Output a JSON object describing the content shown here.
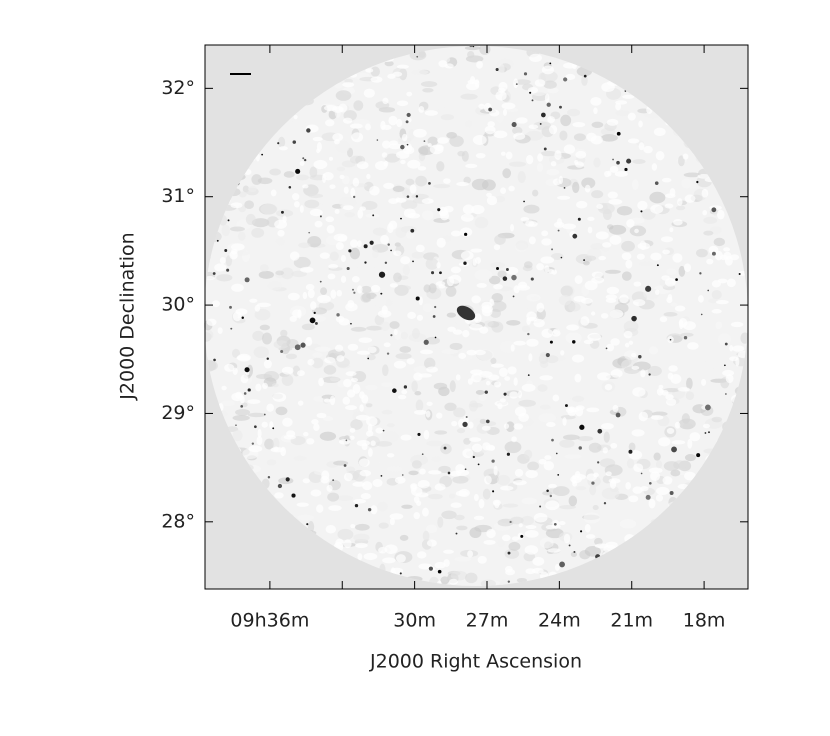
{
  "chart_data": {
    "type": "image",
    "x_label": "J2000 Right Ascension",
    "y_label": "J2000 Declination",
    "xlim": [
      38.69,
      16.18
    ],
    "ylim": [
      27.38,
      32.4
    ],
    "xticks": [
      {
        "value": 36,
        "label": "09h36m"
      },
      {
        "value": 30,
        "label": "30m"
      },
      {
        "value": 27,
        "label": "27m"
      },
      {
        "value": 24,
        "label": "24m"
      },
      {
        "value": 21,
        "label": "21m"
      },
      {
        "value": 18,
        "label": "18m"
      }
    ],
    "xticks_unlabeled": [
      33
    ],
    "yticks": [
      {
        "value": 28,
        "label": "28°"
      },
      {
        "value": 29,
        "label": "29°"
      },
      {
        "value": 30,
        "label": "30°"
      },
      {
        "value": 31,
        "label": "31°"
      },
      {
        "value": 32,
        "label": "32°"
      }
    ]
  }
}
